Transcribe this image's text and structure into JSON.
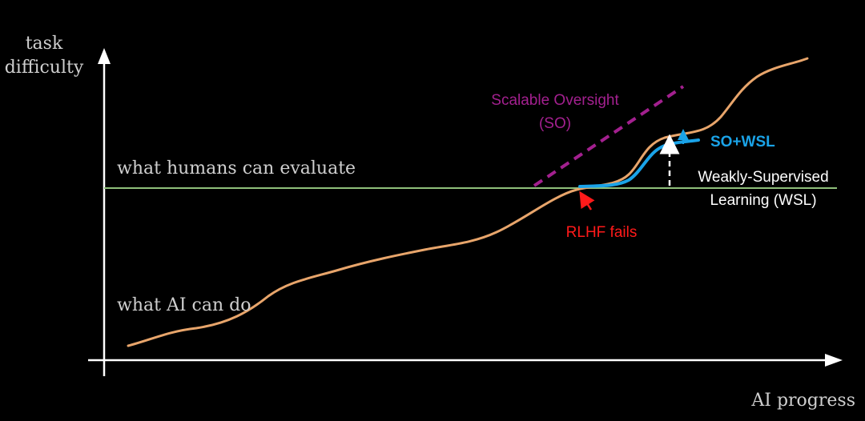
{
  "axes": {
    "y_label_line1": "task",
    "y_label_line2": "difficulty",
    "x_label": "AI progress"
  },
  "annotations": {
    "human_eval_label": "what humans can evaluate",
    "ai_can_do_label": "what AI can do",
    "scalable_oversight_line1": "Scalable Oversight",
    "scalable_oversight_line2": "(SO)",
    "rlhf_fails": "RLHF fails",
    "wsl_line1": "Weakly-Supervised",
    "wsl_line2": "Learning (WSL)",
    "so_wsl": "SO+WSL"
  },
  "colors": {
    "background": "#000000",
    "axis": "#ffffff",
    "ai_curve": "#e8a56b",
    "human_line": "#8fbf7a",
    "scalable_oversight": "#a3208f",
    "rlhf": "#ff1a1a",
    "wsl_curve": "#1aa3e8",
    "wsl_arrow": "#ffffff",
    "text_serif": "#cfcfcf",
    "text_white": "#ffffff"
  },
  "icons": {
    "y_axis_arrowhead": "arrow-up-icon",
    "x_axis_arrowhead": "arrow-right-icon"
  }
}
